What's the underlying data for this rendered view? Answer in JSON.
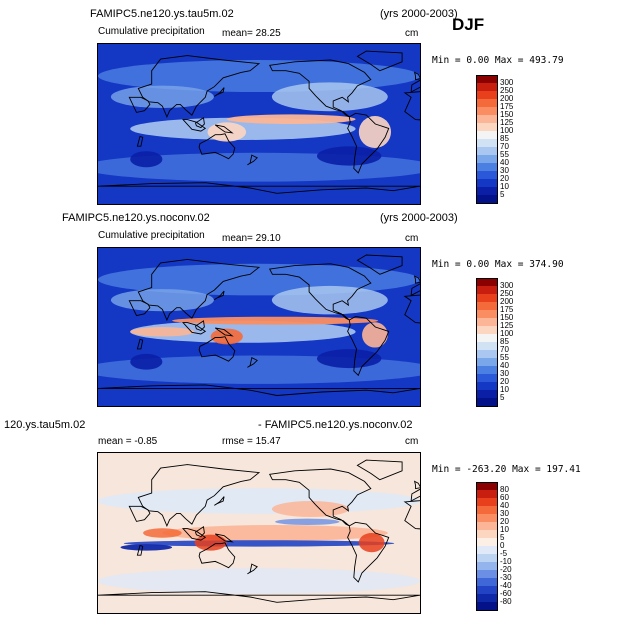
{
  "header": {
    "season": "DJF"
  },
  "panels": [
    {
      "title_left": "FAMIPC5.ne120.ys.tau5m.02",
      "title_right": "(yrs 2000-2003)",
      "subtitle": "Cumulative precipitation",
      "stat1": "mean=   28.25",
      "stat2": "",
      "units": "cm",
      "minmax": "Min =    0.00 Max = 493.79",
      "scheme": "precip",
      "colorbar": {
        "labels": [
          "300",
          "250",
          "200",
          "175",
          "150",
          "125",
          "100",
          "85",
          "70",
          "55",
          "40",
          "30",
          "20",
          "10",
          "5"
        ],
        "colors": [
          "#8b0000",
          "#c81e0f",
          "#e8401c",
          "#f56a3a",
          "#fa8e62",
          "#fcb596",
          "#fdd6c2",
          "#f4f4f4",
          "#d2e2f5",
          "#a9c7f0",
          "#7aa6ea",
          "#4b7fe2",
          "#2a58d8",
          "#1437c4",
          "#0a1fa6",
          "#04128a"
        ]
      }
    },
    {
      "title_left": "FAMIPC5.ne120.ys.noconv.02",
      "title_right": "(yrs 2000-2003)",
      "subtitle": "Cumulative precipitation",
      "stat1": "mean=   29.10",
      "stat2": "",
      "units": "cm",
      "minmax": "Min =    0.00 Max = 374.90",
      "scheme": "precip",
      "colorbar": {
        "labels": [
          "300",
          "250",
          "200",
          "175",
          "150",
          "125",
          "100",
          "85",
          "70",
          "55",
          "40",
          "30",
          "20",
          "10",
          "5"
        ],
        "colors": [
          "#8b0000",
          "#c81e0f",
          "#e8401c",
          "#f56a3a",
          "#fa8e62",
          "#fcb596",
          "#fdd6c2",
          "#f4f4f4",
          "#d2e2f5",
          "#a9c7f0",
          "#7aa6ea",
          "#4b7fe2",
          "#2a58d8",
          "#1437c4",
          "#0a1fa6",
          "#04128a"
        ]
      }
    },
    {
      "title_left": "120.ys.tau5m.02",
      "title_right": "- FAMIPC5.ne120.ys.noconv.02",
      "subtitle": "",
      "stat1": "mean =   -0.85",
      "stat2": "rmse =   15.47",
      "units": "cm",
      "minmax": "Min = -263.20 Max = 197.41",
      "scheme": "diff",
      "colorbar": {
        "labels": [
          "80",
          "60",
          "40",
          "30",
          "20",
          "10",
          "5",
          "0",
          "-5",
          "-10",
          "-20",
          "-30",
          "-40",
          "-60",
          "-80"
        ],
        "colors": [
          "#8b0000",
          "#c81e0f",
          "#e8401c",
          "#f56a3a",
          "#fa8e62",
          "#fcb596",
          "#fdd6c2",
          "#fbefe6",
          "#dfe9f7",
          "#bcd3f2",
          "#93b4ec",
          "#6a8fe4",
          "#3f67d8",
          "#2244c4",
          "#0f28a8",
          "#04128a"
        ]
      }
    }
  ]
}
